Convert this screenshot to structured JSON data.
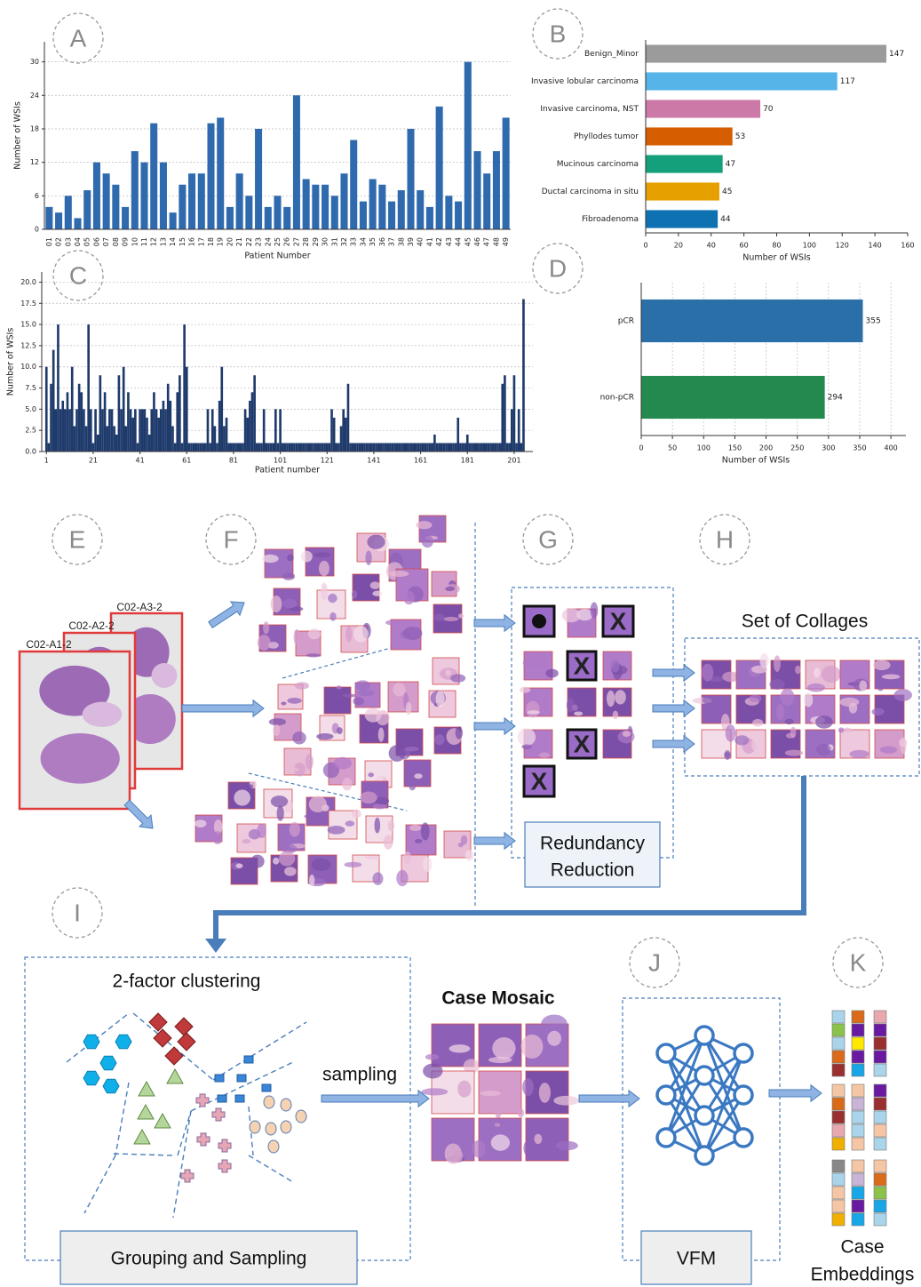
{
  "chart_data": [
    {
      "type": "bar",
      "panel": "A",
      "orientation": "vertical",
      "color": "#2e6aad",
      "grid": "y",
      "xlabel": "Patient Number",
      "ylabel": "Number of WSIs",
      "categories": [
        "01",
        "02",
        "03",
        "04",
        "05",
        "06",
        "07",
        "08",
        "09",
        "10",
        "11",
        "12",
        "13",
        "14",
        "15",
        "16",
        "17",
        "18",
        "19",
        "20",
        "21",
        "22",
        "23",
        "24",
        "25",
        "26",
        "27",
        "28",
        "29",
        "30",
        "31",
        "32",
        "33",
        "34",
        "35",
        "36",
        "37",
        "38",
        "39",
        "40",
        "41",
        "42",
        "43",
        "44",
        "45",
        "46",
        "47",
        "48",
        "49"
      ],
      "values": [
        4,
        3,
        6,
        2,
        7,
        12,
        10,
        8,
        4,
        14,
        12,
        19,
        12,
        3,
        8,
        10,
        10,
        19,
        20,
        4,
        10,
        6,
        18,
        4,
        6,
        4,
        24,
        9,
        8,
        8,
        6,
        10,
        16,
        5,
        9,
        8,
        5,
        7,
        18,
        7,
        4,
        22,
        6,
        5,
        30,
        14,
        10,
        14,
        20
      ],
      "ylim": [
        0,
        33.6
      ],
      "yticks": [
        0,
        6,
        12,
        18,
        24,
        30
      ]
    },
    {
      "type": "bar",
      "panel": "B",
      "orientation": "horizontal",
      "data_labels": true,
      "xlabel": "Number of WSIs",
      "categories": [
        "Benign_Minor",
        "Invasive lobular carcinoma",
        "Invasive carcinoma, NST",
        "Phyllodes tumor",
        "Mucinous carcinoma",
        "Ductal carcinoma in situ",
        "Fibroadenoma"
      ],
      "values": [
        147,
        117,
        70,
        53,
        47,
        45,
        44
      ],
      "colors": [
        "#9b9b9b",
        "#56b4e9",
        "#cc79a7",
        "#d55e00",
        "#14a07a",
        "#e6a000",
        "#0e72b2"
      ],
      "xlim": [
        0,
        160
      ],
      "xticks": [
        0,
        20,
        40,
        60,
        80,
        100,
        120,
        140,
        160
      ]
    },
    {
      "type": "bar",
      "panel": "C",
      "orientation": "vertical",
      "color": "#1e3a6b",
      "grid": "y",
      "xlabel": "Patient number",
      "ylabel": "Number of WSIs",
      "x": [
        1,
        2,
        3,
        4,
        5,
        6,
        7,
        8,
        9,
        10,
        11,
        12,
        13,
        14,
        15,
        16,
        17,
        18,
        19,
        20,
        21,
        22,
        23,
        24,
        25,
        26,
        27,
        28,
        29,
        30,
        31,
        32,
        33,
        34,
        35,
        36,
        37,
        38,
        39,
        40,
        41,
        42,
        43,
        44,
        45,
        46,
        47,
        48,
        49,
        50,
        51,
        52,
        53,
        54,
        55,
        56,
        57,
        58,
        59,
        60,
        61,
        62,
        63,
        64,
        65,
        66,
        67,
        68,
        69,
        70,
        71,
        72,
        73,
        74,
        75,
        76,
        77,
        78,
        79,
        80,
        81,
        82,
        83,
        84,
        85,
        86,
        87,
        88,
        89,
        90,
        91,
        92,
        93,
        94,
        95,
        96,
        97,
        98,
        99,
        100,
        101,
        102,
        103,
        104,
        105,
        106,
        107,
        108,
        109,
        110,
        111,
        112,
        113,
        114,
        115,
        116,
        117,
        118,
        119,
        120,
        121,
        122,
        123,
        124,
        125,
        126,
        127,
        128,
        129,
        130,
        131,
        132,
        133,
        134,
        135,
        136,
        137,
        138,
        139,
        140,
        141,
        142,
        143,
        144,
        145,
        146,
        147,
        148,
        149,
        150,
        151,
        152,
        153,
        154,
        155,
        156,
        157,
        158,
        159,
        160,
        161,
        162,
        163,
        164,
        165,
        166,
        167,
        168,
        169,
        170,
        171,
        172,
        173,
        174,
        175,
        176,
        177,
        178,
        179,
        180,
        181,
        182,
        183,
        184,
        185,
        186,
        187,
        188,
        189,
        190,
        191,
        192,
        193,
        194,
        195,
        196,
        197,
        198,
        199,
        200,
        201,
        202,
        203,
        204,
        205
      ],
      "values": [
        10,
        1,
        8,
        12,
        5,
        15,
        5,
        6,
        5,
        7,
        5,
        10,
        3,
        5,
        8,
        7,
        5,
        3,
        15,
        5,
        1,
        5,
        2,
        9,
        5,
        7,
        3,
        5,
        5,
        3,
        2,
        9,
        5,
        10,
        3,
        7,
        5,
        4,
        5,
        1,
        5,
        5,
        5,
        4,
        2,
        5,
        7,
        5,
        4,
        5,
        6,
        5,
        8,
        6,
        3,
        1,
        7,
        9,
        1,
        15,
        10,
        1,
        1,
        1,
        1,
        1,
        1,
        1,
        1,
        5,
        1,
        5,
        3,
        1,
        6,
        10,
        3,
        4,
        1,
        1,
        1,
        1,
        1,
        1,
        1,
        5,
        4,
        6,
        7,
        9,
        1,
        1,
        1,
        5,
        1,
        1,
        1,
        1,
        5,
        1,
        5,
        1,
        1,
        1,
        1,
        1,
        1,
        1,
        1,
        1,
        1,
        1,
        1,
        1,
        1,
        1,
        1,
        1,
        1,
        1,
        1,
        1,
        5,
        4,
        1,
        1,
        3,
        5,
        4,
        8,
        1,
        1,
        1,
        1,
        1,
        1,
        1,
        1,
        1,
        1,
        1,
        1,
        1,
        1,
        1,
        1,
        1,
        1,
        1,
        1,
        1,
        1,
        1,
        1,
        1,
        1,
        1,
        1,
        1,
        1,
        1,
        1,
        1,
        1,
        1,
        1,
        2,
        1,
        1,
        1,
        1,
        1,
        1,
        1,
        1,
        1,
        4,
        1,
        1,
        1,
        2,
        1,
        1,
        1,
        1,
        1,
        1,
        1,
        1,
        1,
        1,
        1,
        1,
        1,
        1,
        8,
        9,
        1,
        1,
        5,
        9,
        1,
        5,
        1,
        18
      ],
      "xlim": [
        -1,
        209
      ],
      "xticks": [
        1,
        21,
        41,
        61,
        81,
        101,
        121,
        141,
        161,
        181,
        201
      ],
      "ylim": [
        0,
        21.2
      ],
      "yticks": [
        {
          "value": 0,
          "label": "0.0"
        },
        {
          "value": 2.5,
          "label": "2.5"
        },
        {
          "value": 5,
          "label": "5.0"
        },
        {
          "value": 7.5,
          "label": "7.5"
        },
        {
          "value": 10,
          "label": "10.0"
        },
        {
          "value": 12.5,
          "label": "12.5"
        },
        {
          "value": 15,
          "label": "15.0"
        },
        {
          "value": 17.5,
          "label": "17.5"
        },
        {
          "value": 20,
          "label": "20.0"
        }
      ]
    },
    {
      "type": "bar",
      "panel": "D",
      "orientation": "horizontal",
      "data_labels": true,
      "grid": "x",
      "xlabel": "Number of WSIs",
      "categories": [
        "pCR",
        "non-pCR"
      ],
      "values": [
        355,
        294
      ],
      "colors": [
        "#2a6fa8",
        "#24894f"
      ],
      "xlim": [
        0,
        424
      ],
      "xticks": [
        0,
        50,
        100,
        150,
        200,
        250,
        300,
        350,
        400
      ]
    }
  ],
  "diagram": {
    "panels": [
      "E",
      "F",
      "G",
      "H",
      "I",
      "J",
      "K"
    ],
    "slides": [
      "C02-A3-2",
      "C02-A2-2",
      "C02-A1-2"
    ],
    "removed_mark": "X",
    "collages_title": "Set of Collages",
    "redundancy_box": [
      "Redundancy",
      "Reduction"
    ],
    "clustering_title": "2-factor clustering",
    "sampling_label": "sampling",
    "mosaic_title": "Case Mosaic",
    "grouping_box": "Grouping and Sampling",
    "vfm_box": "VFM",
    "embeddings_label": [
      "Case",
      "Embeddings"
    ]
  }
}
